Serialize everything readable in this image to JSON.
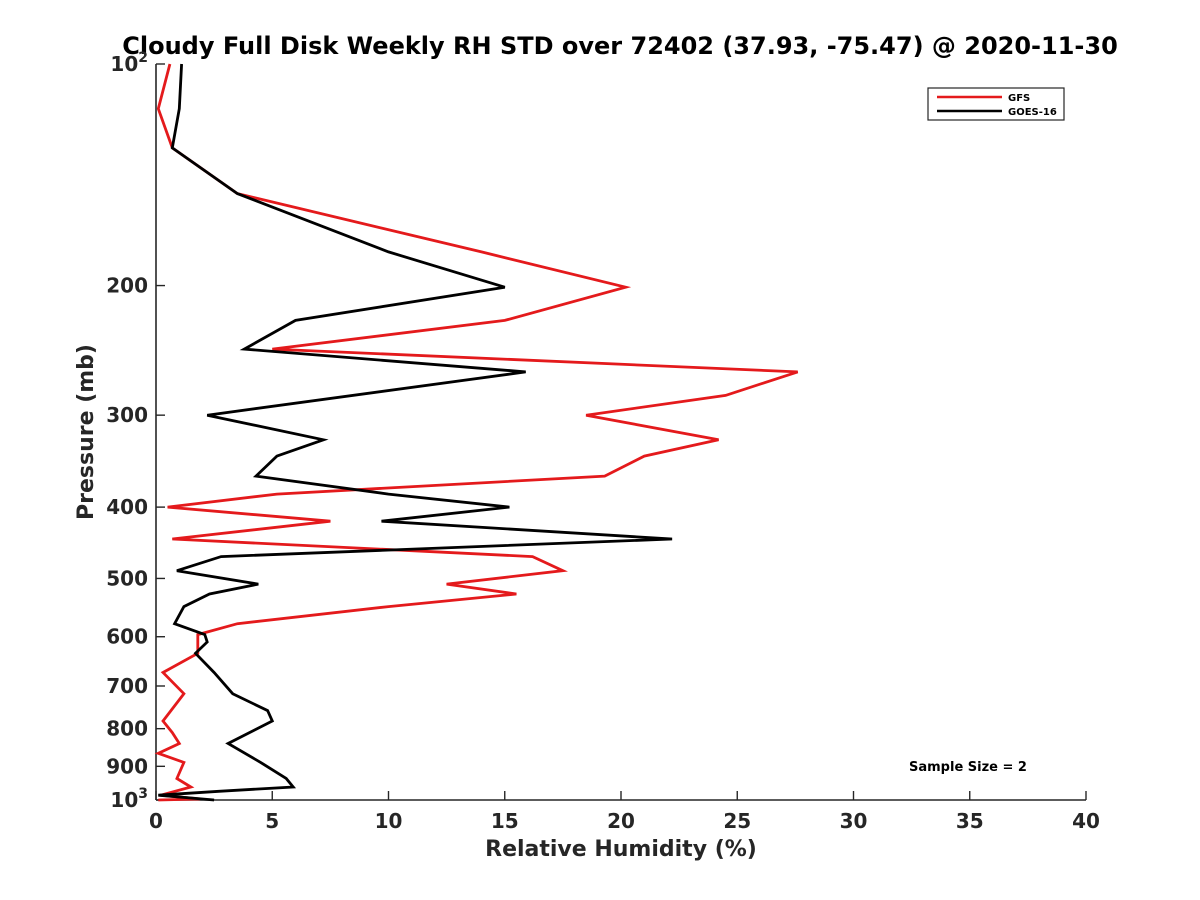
{
  "chart_data": {
    "type": "line",
    "title": "Cloudy Full Disk Weekly RH STD over 72402 (37.93, -75.47) @ 2020-11-30",
    "xlabel": "Relative Humidity (%)",
    "ylabel": "Pressure (mb)",
    "xlim": [
      0,
      40
    ],
    "ylim": [
      100,
      1000
    ],
    "yscale": "log",
    "y_reversed": true,
    "grid": false,
    "legend_position": "top-right",
    "x_ticks": [
      0,
      5,
      10,
      15,
      20,
      25,
      30,
      35,
      40
    ],
    "x_tick_labels": [
      "0",
      "5",
      "10",
      "15",
      "20",
      "25",
      "30",
      "35",
      "40"
    ],
    "y_ticks": [
      100,
      200,
      300,
      400,
      500,
      600,
      700,
      800,
      900,
      1000
    ],
    "y_tick_labels": [
      {
        "base": "10",
        "exp": "2"
      },
      {
        "base": "200",
        "exp": ""
      },
      {
        "base": "300",
        "exp": ""
      },
      {
        "base": "400",
        "exp": ""
      },
      {
        "base": "500",
        "exp": ""
      },
      {
        "base": "600",
        "exp": ""
      },
      {
        "base": "700",
        "exp": ""
      },
      {
        "base": "800",
        "exp": ""
      },
      {
        "base": "900",
        "exp": ""
      },
      {
        "base": "10",
        "exp": "3"
      }
    ],
    "annotation": "Sample Size = 2",
    "series": [
      {
        "name": "GFS",
        "color": "#e41a1c",
        "points": [
          [
            0.6,
            100
          ],
          [
            0.1,
            115
          ],
          [
            0.7,
            130
          ],
          [
            3.5,
            150
          ],
          [
            14,
            180
          ],
          [
            20.2,
            201
          ],
          [
            15,
            223
          ],
          [
            5,
            244
          ],
          [
            27.6,
            262
          ],
          [
            24.5,
            282
          ],
          [
            18.5,
            300
          ],
          [
            24.2,
            324
          ],
          [
            21,
            341
          ],
          [
            19.3,
            363
          ],
          [
            5.2,
            384
          ],
          [
            0.5,
            400
          ],
          [
            7.5,
            418
          ],
          [
            0.7,
            442
          ],
          [
            16.2,
            467
          ],
          [
            17.5,
            488
          ],
          [
            12.5,
            509
          ],
          [
            15.5,
            525
          ],
          [
            10,
            546
          ],
          [
            3.5,
            576
          ],
          [
            1.8,
            596
          ],
          [
            1.8,
            632
          ],
          [
            0.3,
            671
          ],
          [
            1.2,
            717
          ],
          [
            0.3,
            781
          ],
          [
            0.7,
            810
          ],
          [
            1.0,
            838
          ],
          [
            0.1,
            864
          ],
          [
            1.2,
            889
          ],
          [
            0.9,
            935
          ],
          [
            1.5,
            960
          ],
          [
            0.2,
            985
          ],
          [
            1.9,
            997
          ],
          [
            0.1,
            1000
          ]
        ]
      },
      {
        "name": "GOES-16",
        "color": "#000000",
        "points": [
          [
            1.1,
            100
          ],
          [
            1.0,
            115
          ],
          [
            0.7,
            130
          ],
          [
            3.5,
            150
          ],
          [
            10,
            180
          ],
          [
            15,
            201
          ],
          [
            6,
            223
          ],
          [
            3.8,
            244
          ],
          [
            15.9,
            262
          ],
          [
            2.2,
            300
          ],
          [
            7.2,
            324
          ],
          [
            5.2,
            341
          ],
          [
            4.3,
            363
          ],
          [
            10,
            384
          ],
          [
            15.2,
            400
          ],
          [
            9.7,
            418
          ],
          [
            22.2,
            442
          ],
          [
            2.8,
            467
          ],
          [
            0.9,
            488
          ],
          [
            4.4,
            509
          ],
          [
            2.3,
            525
          ],
          [
            1.2,
            546
          ],
          [
            0.8,
            576
          ],
          [
            2.1,
            596
          ],
          [
            2.2,
            610
          ],
          [
            1.7,
            632
          ],
          [
            2.5,
            671
          ],
          [
            3.3,
            717
          ],
          [
            4.8,
            756
          ],
          [
            5.0,
            781
          ],
          [
            3.1,
            838
          ],
          [
            4.5,
            889
          ],
          [
            5.6,
            935
          ],
          [
            5.9,
            960
          ],
          [
            2.7,
            973
          ],
          [
            0.1,
            985
          ],
          [
            2.5,
            1000
          ]
        ]
      }
    ]
  }
}
